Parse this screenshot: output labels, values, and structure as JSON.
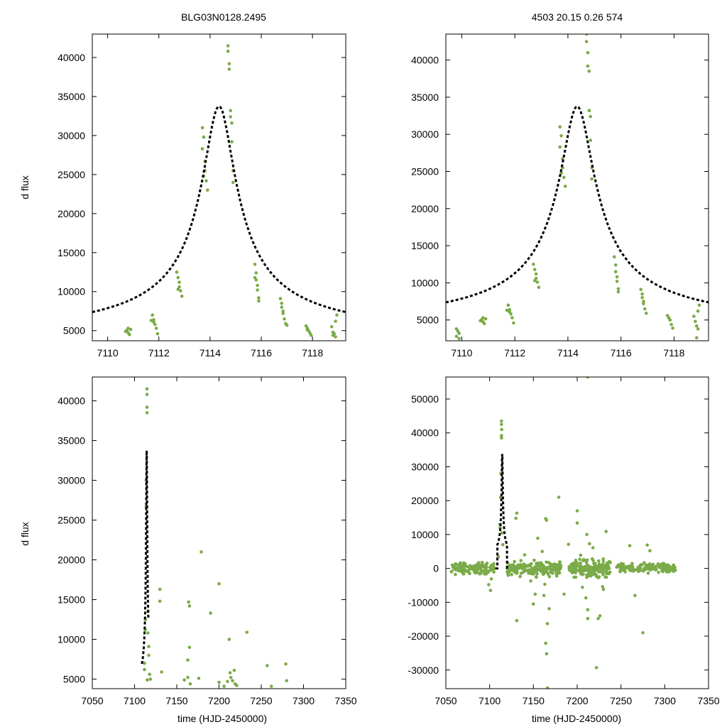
{
  "colors": {
    "points": "#7aab48",
    "model": "#000000",
    "frame": "#000000"
  },
  "model": {
    "t0": 7114.35,
    "amp": 30100,
    "base": 3650,
    "tau": 0.85,
    "tscale": 1.3
  },
  "chart_data": [
    {
      "type": "scatter",
      "id": "top-left",
      "title": "BLG03N0128.2495",
      "xlabel": "",
      "ylabel": "d flux",
      "xlim": [
        7109.4,
        7119.3
      ],
      "ylim": [
        3700,
        43000
      ],
      "xticks": [
        7110,
        7112,
        7114,
        7116,
        7118
      ],
      "yticks": [
        5000,
        10000,
        15000,
        20000,
        25000,
        30000,
        35000,
        40000
      ],
      "model_x": [
        7109.4,
        7119.3
      ],
      "points": [
        [
          7110.8,
          5300
        ],
        [
          7110.75,
          5050
        ],
        [
          7110.8,
          4750
        ],
        [
          7110.85,
          4500
        ],
        [
          7110.9,
          5150
        ],
        [
          7110.7,
          4900
        ],
        [
          7111.75,
          7000
        ],
        [
          7111.8,
          6400
        ],
        [
          7111.8,
          6100
        ],
        [
          7111.85,
          5800
        ],
        [
          7111.9,
          5300
        ],
        [
          7111.95,
          4600
        ],
        [
          7111.7,
          6300
        ],
        [
          7112.7,
          12500
        ],
        [
          7112.75,
          11800
        ],
        [
          7112.8,
          11200
        ],
        [
          7112.8,
          10600
        ],
        [
          7112.85,
          10100
        ],
        [
          7112.9,
          9400
        ],
        [
          7112.75,
          10300
        ],
        [
          7113.7,
          31000
        ],
        [
          7113.75,
          29800
        ],
        [
          7113.7,
          28300
        ],
        [
          7113.8,
          26700
        ],
        [
          7113.8,
          25500
        ],
        [
          7113.85,
          24200
        ],
        [
          7113.9,
          23000
        ],
        [
          7113.75,
          24800
        ],
        [
          7114.7,
          41500
        ],
        [
          7114.7,
          40800
        ],
        [
          7114.75,
          39200
        ],
        [
          7114.75,
          38500
        ],
        [
          7114.8,
          33200
        ],
        [
          7114.8,
          32400
        ],
        [
          7114.85,
          31600
        ],
        [
          7114.85,
          29200
        ],
        [
          7114.9,
          25500
        ],
        [
          7114.9,
          24000
        ],
        [
          7115.75,
          13500
        ],
        [
          7115.8,
          12400
        ],
        [
          7115.8,
          11500
        ],
        [
          7115.85,
          10800
        ],
        [
          7115.85,
          10200
        ],
        [
          7115.9,
          9200
        ],
        [
          7115.9,
          8800
        ],
        [
          7115.75,
          11800
        ],
        [
          7116.75,
          9100
        ],
        [
          7116.8,
          8500
        ],
        [
          7116.8,
          8000
        ],
        [
          7116.85,
          7500
        ],
        [
          7116.85,
          7200
        ],
        [
          7116.9,
          6500
        ],
        [
          7116.95,
          5900
        ],
        [
          7117.0,
          5700
        ],
        [
          7117.75,
          5600
        ],
        [
          7117.8,
          5300
        ],
        [
          7117.85,
          5000
        ],
        [
          7117.9,
          4700
        ],
        [
          7117.95,
          4400
        ],
        [
          7117.8,
          5100
        ],
        [
          7118.75,
          5500
        ],
        [
          7118.8,
          4800
        ],
        [
          7118.85,
          4600
        ],
        [
          7118.9,
          4200
        ],
        [
          7118.95,
          7000
        ],
        [
          7118.9,
          6200
        ],
        [
          7118.8,
          4400
        ]
      ]
    },
    {
      "type": "scatter",
      "id": "top-right",
      "title": "4503  20.15  0.26  574",
      "xlabel": "",
      "ylabel": "",
      "xlim": [
        7109.4,
        7119.3
      ],
      "ylim": [
        2200,
        43500
      ],
      "xticks": [
        7110,
        7112,
        7114,
        7116,
        7118
      ],
      "yticks": [
        5000,
        10000,
        15000,
        20000,
        25000,
        30000,
        35000,
        40000
      ],
      "model_x": [
        7109.4,
        7119.3
      ],
      "points": [
        [
          7109.8,
          3800
        ],
        [
          7109.85,
          3500
        ],
        [
          7109.9,
          3200
        ],
        [
          7109.8,
          2800
        ],
        [
          7109.9,
          2500
        ],
        [
          7110.8,
          5300
        ],
        [
          7110.75,
          5050
        ],
        [
          7110.8,
          4750
        ],
        [
          7110.85,
          4500
        ],
        [
          7110.9,
          5150
        ],
        [
          7110.7,
          4900
        ],
        [
          7111.75,
          7000
        ],
        [
          7111.8,
          6400
        ],
        [
          7111.8,
          6100
        ],
        [
          7111.85,
          5800
        ],
        [
          7111.9,
          5300
        ],
        [
          7111.95,
          4600
        ],
        [
          7111.7,
          6300
        ],
        [
          7112.7,
          12500
        ],
        [
          7112.75,
          11800
        ],
        [
          7112.8,
          11200
        ],
        [
          7112.8,
          10600
        ],
        [
          7112.85,
          10100
        ],
        [
          7112.9,
          9400
        ],
        [
          7112.75,
          10300
        ],
        [
          7113.7,
          31000
        ],
        [
          7113.75,
          29800
        ],
        [
          7113.7,
          28300
        ],
        [
          7113.8,
          26700
        ],
        [
          7113.8,
          25500
        ],
        [
          7113.85,
          24200
        ],
        [
          7113.9,
          23000
        ],
        [
          7113.75,
          24800
        ],
        [
          7114.7,
          43500
        ],
        [
          7114.7,
          42500
        ],
        [
          7114.75,
          41000
        ],
        [
          7114.75,
          39200
        ],
        [
          7114.8,
          38500
        ],
        [
          7114.8,
          33200
        ],
        [
          7114.85,
          32400
        ],
        [
          7114.85,
          29200
        ],
        [
          7114.9,
          25500
        ],
        [
          7114.9,
          24000
        ],
        [
          7115.75,
          13500
        ],
        [
          7115.8,
          12400
        ],
        [
          7115.8,
          11500
        ],
        [
          7115.85,
          10800
        ],
        [
          7115.85,
          10200
        ],
        [
          7115.9,
          9200
        ],
        [
          7115.9,
          8800
        ],
        [
          7116.75,
          9100
        ],
        [
          7116.8,
          8500
        ],
        [
          7116.8,
          8000
        ],
        [
          7116.85,
          7500
        ],
        [
          7116.85,
          7200
        ],
        [
          7116.9,
          6500
        ],
        [
          7116.95,
          5900
        ],
        [
          7117.75,
          5600
        ],
        [
          7117.8,
          5300
        ],
        [
          7117.85,
          5000
        ],
        [
          7117.9,
          4400
        ],
        [
          7117.95,
          3900
        ],
        [
          7118.75,
          5500
        ],
        [
          7118.8,
          4800
        ],
        [
          7118.85,
          4200
        ],
        [
          7118.9,
          3800
        ],
        [
          7118.95,
          7000
        ],
        [
          7118.9,
          6200
        ],
        [
          7118.85,
          2600
        ]
      ]
    },
    {
      "type": "scatter",
      "id": "bottom-left",
      "title": "",
      "xlabel": "time (HJD-2450000)",
      "ylabel": "d flux",
      "xlim": [
        7050,
        7350
      ],
      "ylim": [
        3800,
        43000
      ],
      "xticks": [
        7050,
        7100,
        7150,
        7200,
        7250,
        7300,
        7350
      ],
      "yticks": [
        5000,
        10000,
        15000,
        20000,
        25000,
        30000,
        35000,
        40000
      ],
      "model_x": [
        7108.7,
        7116.3
      ],
      "points": [
        [
          7114.7,
          41500
        ],
        [
          7114.7,
          40800
        ],
        [
          7114.75,
          39200
        ],
        [
          7114.75,
          38500
        ],
        [
          7113.8,
          30000
        ],
        [
          7113.7,
          26700
        ],
        [
          7112.8,
          12500
        ],
        [
          7112.8,
          11200
        ],
        [
          7111.8,
          7000
        ],
        [
          7111.8,
          6200
        ],
        [
          7116.8,
          9100
        ],
        [
          7116.8,
          8000
        ],
        [
          7117.8,
          5600
        ],
        [
          7118.8,
          5000
        ],
        [
          7115.8,
          13500
        ],
        [
          7115.8,
          10800
        ],
        [
          7130,
          16300
        ],
        [
          7130,
          14800
        ],
        [
          7132,
          5900
        ],
        [
          7159,
          4900
        ],
        [
          7164,
          14700
        ],
        [
          7165,
          14200
        ],
        [
          7163,
          7400
        ],
        [
          7163,
          5200
        ],
        [
          7165,
          9000
        ],
        [
          7166,
          4400
        ],
        [
          7176,
          5100
        ],
        [
          7179,
          21000
        ],
        [
          7190,
          13300
        ],
        [
          7200,
          17000
        ],
        [
          7200,
          4600
        ],
        [
          7206,
          4100
        ],
        [
          7210,
          4700
        ],
        [
          7212,
          10000
        ],
        [
          7213,
          5800
        ],
        [
          7214,
          5200
        ],
        [
          7216,
          4800
        ],
        [
          7218,
          6100
        ],
        [
          7219,
          4400
        ],
        [
          7221,
          4200
        ],
        [
          7233,
          10900
        ],
        [
          7257,
          6700
        ],
        [
          7262,
          4100
        ],
        [
          7279,
          6900
        ],
        [
          7280,
          4800
        ],
        [
          7115,
          4900
        ]
      ]
    },
    {
      "type": "scatter",
      "id": "bottom-right",
      "title": "",
      "xlabel": "time (HJD-2450000)",
      "ylabel": "",
      "xlim": [
        7050,
        7350
      ],
      "ylim": [
        -35500,
        56500
      ],
      "xticks": [
        7050,
        7100,
        7150,
        7200,
        7250,
        7300,
        7350
      ],
      "yticks": [
        -30000,
        -20000,
        -10000,
        0,
        10000,
        20000,
        30000,
        40000,
        50000
      ],
      "model_x": [
        7106.5,
        7120.5
      ],
      "bands": [
        {
          "x0": 7056,
          "x1": 7106,
          "yc": 0,
          "spread": 1600,
          "n": 140
        },
        {
          "x0": 7120,
          "x1": 7182,
          "yc": 0,
          "spread": 2000,
          "n": 200
        },
        {
          "x0": 7190,
          "x1": 7238,
          "yc": 0,
          "spread": 2400,
          "n": 170
        },
        {
          "x0": 7245,
          "x1": 7313,
          "yc": 0,
          "spread": 1300,
          "n": 150
        }
      ],
      "points": [
        [
          7113.5,
          43500
        ],
        [
          7113.5,
          42500
        ],
        [
          7113.7,
          41000
        ],
        [
          7113.6,
          39200
        ],
        [
          7113.5,
          38500
        ],
        [
          7112.8,
          28000
        ],
        [
          7112.5,
          21000
        ],
        [
          7111.8,
          13000
        ],
        [
          7112,
          12000
        ],
        [
          7114,
          10500
        ],
        [
          7115,
          7000
        ],
        [
          7110,
          3500
        ],
        [
          7101,
          -6500
        ],
        [
          7099,
          -4800
        ],
        [
          7102,
          -3100
        ],
        [
          7131,
          16300
        ],
        [
          7130,
          14800
        ],
        [
          7131,
          -15400
        ],
        [
          7140,
          4000
        ],
        [
          7147,
          -3700
        ],
        [
          7150,
          -10500
        ],
        [
          7152,
          -7600
        ],
        [
          7155,
          8900
        ],
        [
          7160,
          5000
        ],
        [
          7164,
          14700
        ],
        [
          7165,
          14200
        ],
        [
          7165,
          -25200
        ],
        [
          7164,
          -22100
        ],
        [
          7166,
          -16300
        ],
        [
          7168,
          -11900
        ],
        [
          7166,
          -35300
        ],
        [
          7162,
          -8000
        ],
        [
          7163,
          -4700
        ],
        [
          7179,
          21000
        ],
        [
          7185,
          -7600
        ],
        [
          7190,
          7100
        ],
        [
          7200,
          17000
        ],
        [
          7200,
          13400
        ],
        [
          7204,
          3900
        ],
        [
          7206,
          -5600
        ],
        [
          7211,
          10000
        ],
        [
          7212,
          -14800
        ],
        [
          7212,
          -12200
        ],
        [
          7210,
          -8700
        ],
        [
          7214,
          7300
        ],
        [
          7218,
          6100
        ],
        [
          7222,
          -29300
        ],
        [
          7224,
          -14800
        ],
        [
          7226,
          -14000
        ],
        [
          7233,
          10900
        ],
        [
          7230,
          -6200
        ],
        [
          7229,
          -5400
        ],
        [
          7260,
          6700
        ],
        [
          7266,
          -8000
        ],
        [
          7275,
          -19000
        ],
        [
          7280,
          6900
        ],
        [
          7283,
          5200
        ],
        [
          7212,
          56500
        ]
      ]
    }
  ]
}
